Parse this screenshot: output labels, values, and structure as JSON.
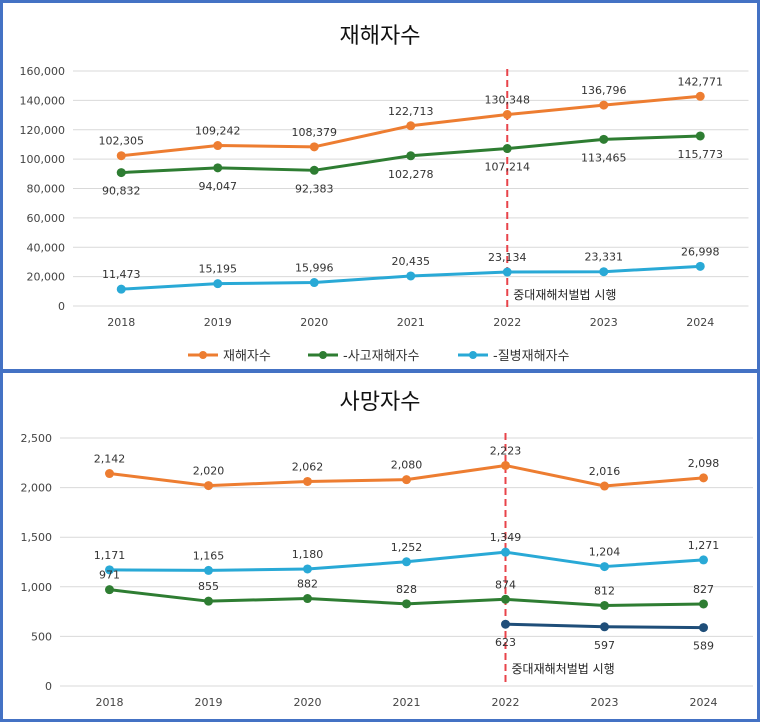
{
  "chart_data": [
    {
      "type": "line",
      "title": "재해자수",
      "x": [
        "2018",
        "2019",
        "2020",
        "2021",
        "2022",
        "2023",
        "2024"
      ],
      "ylim": [
        0,
        160000
      ],
      "yticks": [
        "0",
        "20,000",
        "40,000",
        "60,000",
        "80,000",
        "100,000",
        "120,000",
        "140,000",
        "160,000"
      ],
      "grid": true,
      "legend_position": "bottom",
      "series": [
        {
          "name": "재해자수",
          "color": "#ed7d31",
          "values": [
            102305,
            109242,
            108379,
            122713,
            130348,
            136796,
            142771
          ],
          "labels": [
            "102,305",
            "109,242",
            "108,379",
            "122,713",
            "130,348",
            "136,796",
            "142,771"
          ],
          "label_pos": "above"
        },
        {
          "name": "-사고재해자수",
          "color": "#2e7d32",
          "values": [
            90832,
            94047,
            92383,
            102278,
            107214,
            113465,
            115773
          ],
          "labels": [
            "90,832",
            "94,047",
            "92,383",
            "102,278",
            "107,214",
            "113,465",
            "115,773"
          ],
          "label_pos": "below"
        },
        {
          "name": "-질병재해자수",
          "color": "#29a9d6",
          "values": [
            11473,
            15195,
            15996,
            20435,
            23134,
            23331,
            26998
          ],
          "labels": [
            "11,473",
            "15,195",
            "15,996",
            "20,435",
            "23,134",
            "23,331",
            "26,998"
          ],
          "label_pos": "above"
        }
      ],
      "annotation": {
        "text": "중대재해처벌법 시행",
        "x": "2022"
      }
    },
    {
      "type": "line",
      "title": "사망자수",
      "x": [
        "2018",
        "2019",
        "2020",
        "2021",
        "2022",
        "2023",
        "2024"
      ],
      "ylim": [
        0,
        2500
      ],
      "yticks": [
        "0",
        "500",
        "1,000",
        "1,500",
        "2,000",
        "2,500"
      ],
      "grid": true,
      "series": [
        {
          "color": "#ed7d31",
          "values": [
            2142,
            2020,
            2062,
            2080,
            2223,
            2016,
            2098
          ],
          "labels": [
            "2,142",
            "2,020",
            "2,062",
            "2,080",
            "2,223",
            "2,016",
            "2,098"
          ],
          "label_pos": "above"
        },
        {
          "color": "#29a9d6",
          "values": [
            1171,
            1165,
            1180,
            1252,
            1349,
            1204,
            1271
          ],
          "labels": [
            "1,171",
            "1,165",
            "1,180",
            "1,252",
            "1,349",
            "1,204",
            "1,271"
          ],
          "label_pos": "above"
        },
        {
          "color": "#2e7d32",
          "values": [
            971,
            855,
            882,
            828,
            874,
            812,
            827
          ],
          "labels": [
            "971",
            "855",
            "882",
            "828",
            "874",
            "812",
            "827"
          ],
          "label_pos": "above"
        },
        {
          "color": "#1f4e79",
          "values": [
            null,
            null,
            null,
            null,
            623,
            597,
            589
          ],
          "labels": [
            "",
            "",
            "",
            "",
            "623",
            "597",
            "589"
          ],
          "label_pos": "below"
        }
      ],
      "annotation": {
        "text": "중대재해처벌법 시행",
        "x": "2022"
      }
    }
  ]
}
